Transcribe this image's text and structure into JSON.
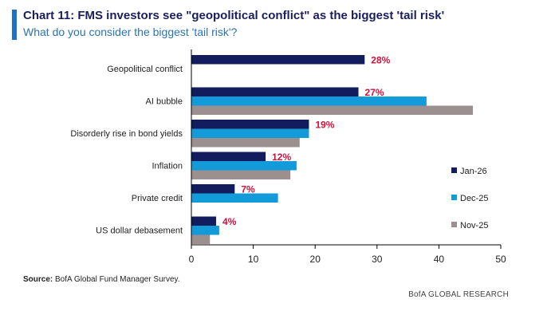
{
  "header": {
    "title": "Chart 11: FMS investors see \"geopolitical conflict\" as the biggest 'tail risk'",
    "subtitle": "What do you consider the biggest 'tail risk'?"
  },
  "footer": {
    "source_label": "Source:",
    "source_text": " BofA Global Fund Manager Survey.",
    "brand": "BofA GLOBAL RESEARCH"
  },
  "colors": {
    "accent": "#1a73c6",
    "jan26": "#131c5c",
    "dec25": "#139ad9",
    "nov25": "#9b8f8f",
    "label_red": "#d0103a",
    "axis": "#000000"
  },
  "chart_data": {
    "type": "bar",
    "orientation": "horizontal",
    "title": "Chart 11: FMS investors see \"geopolitical conflict\" as the biggest 'tail risk'",
    "subtitle": "What do you consider the biggest 'tail risk'?",
    "categories": [
      "Geopolitical conflict",
      "AI bubble",
      "Disorderly rise in bond yields",
      "Inflation",
      "Private credit",
      "US dollar debasement"
    ],
    "series": [
      {
        "name": "Jan-26",
        "values": [
          28,
          27,
          19,
          12,
          7,
          4
        ]
      },
      {
        "name": "Dec-25",
        "values": [
          null,
          38,
          19,
          17,
          14,
          4.5
        ]
      },
      {
        "name": "Nov-25",
        "values": [
          null,
          45.5,
          17.5,
          16,
          null,
          3
        ]
      }
    ],
    "data_labels": [
      "28%",
      "27%",
      "19%",
      "12%",
      "7%",
      "4%"
    ],
    "xlim": [
      0,
      50
    ],
    "xticks": [
      "0",
      "10",
      "20",
      "30",
      "40",
      "50"
    ],
    "xlabel": "",
    "ylabel": "",
    "grid": false,
    "legend": "right"
  }
}
